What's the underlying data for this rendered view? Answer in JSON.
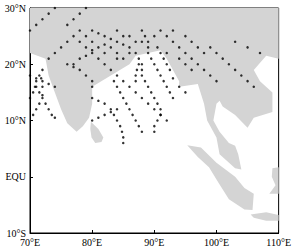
{
  "chart_data": {
    "type": "scatter",
    "marker": "circle",
    "color": "#000000",
    "grid": false,
    "xlim": [
      70,
      110
    ],
    "xticks": [
      {
        "value": 70,
        "label": "70°E"
      },
      {
        "value": 80,
        "label": "80°E"
      },
      {
        "value": 90,
        "label": "90°E"
      },
      {
        "value": 100,
        "label": "100°E"
      },
      {
        "value": 110,
        "label": "110°E"
      }
    ],
    "ylim": [
      -10,
      30
    ],
    "yticks": [
      {
        "value": -10,
        "label": "10°S"
      },
      {
        "value": 0,
        "label": "EQU"
      },
      {
        "value": 10,
        "label": "10°N"
      },
      {
        "value": 20,
        "label": "20°N"
      },
      {
        "value": 30,
        "label": "30°N"
      }
    ],
    "land": {
      "color": "#d4d4d4",
      "polygons": [
        [
          [
            70,
            22
          ],
          [
            72.5,
            21
          ],
          [
            73,
            18
          ],
          [
            74,
            15
          ],
          [
            75,
            12
          ],
          [
            76,
            9.5
          ],
          [
            77.5,
            8
          ],
          [
            78.5,
            9
          ],
          [
            79.5,
            10.5
          ],
          [
            80,
            13
          ],
          [
            80,
            16
          ],
          [
            83,
            18
          ],
          [
            86,
            20
          ],
          [
            87,
            21.5
          ],
          [
            89,
            22
          ],
          [
            91,
            22.5
          ],
          [
            92,
            21
          ],
          [
            94,
            17
          ],
          [
            94,
            16
          ],
          [
            97,
            16.5
          ],
          [
            98,
            13
          ],
          [
            98.5,
            10
          ],
          [
            100,
            7
          ],
          [
            100.5,
            4
          ],
          [
            103,
            1.5
          ],
          [
            104,
            1.3
          ],
          [
            103.5,
            4
          ],
          [
            103,
            5.5
          ],
          [
            102,
            6
          ],
          [
            100.5,
            8
          ],
          [
            99.5,
            10
          ],
          [
            100,
            13
          ],
          [
            100.5,
            13.5
          ],
          [
            101,
            12.5
          ],
          [
            103,
            11
          ],
          [
            105,
            8.7
          ],
          [
            106,
            10.5
          ],
          [
            109,
            11.5
          ],
          [
            109,
            15
          ],
          [
            107,
            17
          ],
          [
            106,
            19
          ],
          [
            108,
            21.5
          ],
          [
            110,
            21
          ],
          [
            110,
            30
          ],
          [
            70,
            30
          ]
        ],
        [
          [
            79.8,
            9.8
          ],
          [
            81,
            8.5
          ],
          [
            81.8,
            7
          ],
          [
            81.5,
            6.2
          ],
          [
            80.5,
            6
          ],
          [
            79.9,
            7
          ],
          [
            79.7,
            8.5
          ]
        ],
        [
          [
            95.3,
            5.6
          ],
          [
            97.5,
            5.2
          ],
          [
            100,
            2.5
          ],
          [
            103,
            0
          ],
          [
            104.5,
            -2
          ],
          [
            106,
            -3
          ],
          [
            105.8,
            -5.9
          ],
          [
            104.5,
            -5.8
          ],
          [
            102,
            -4
          ],
          [
            100.3,
            -1
          ],
          [
            98.8,
            1.7
          ],
          [
            97,
            3.5
          ]
        ],
        [
          [
            108.5,
            -3
          ],
          [
            110,
            -3
          ],
          [
            110,
            1.7
          ],
          [
            109,
            1.5
          ],
          [
            108.9,
            0
          ],
          [
            109.5,
            -1.5
          ]
        ],
        [
          [
            105.5,
            -6.7
          ],
          [
            108,
            -6.3
          ],
          [
            110,
            -6.8
          ],
          [
            110,
            -7.8
          ],
          [
            108,
            -7.8
          ],
          [
            106,
            -7.3
          ]
        ]
      ]
    },
    "points": [
      [
        72,
        19
      ],
      [
        71.5,
        18
      ],
      [
        71,
        17
      ],
      [
        71,
        16
      ],
      [
        71.5,
        15
      ],
      [
        72,
        14
      ],
      [
        72.5,
        13
      ],
      [
        73,
        12
      ],
      [
        73.5,
        11
      ],
      [
        74,
        10.5
      ],
      [
        70.5,
        11
      ],
      [
        71,
        12
      ],
      [
        71.5,
        13
      ],
      [
        72,
        14.5
      ],
      [
        72,
        16
      ],
      [
        71.8,
        17.5
      ],
      [
        74,
        16
      ],
      [
        73,
        16.5
      ],
      [
        72,
        17
      ],
      [
        71,
        17.5
      ],
      [
        70,
        18
      ],
      [
        76,
        27
      ],
      [
        77,
        28
      ],
      [
        78,
        29
      ],
      [
        79,
        30
      ],
      [
        70,
        26
      ],
      [
        71,
        27
      ],
      [
        72,
        28
      ],
      [
        73,
        29
      ],
      [
        74,
        30
      ],
      [
        92,
        10
      ],
      [
        91,
        11
      ],
      [
        90,
        12
      ],
      [
        89,
        13
      ],
      [
        88,
        14
      ],
      [
        87,
        15
      ],
      [
        86,
        16
      ],
      [
        85,
        17
      ],
      [
        84,
        18
      ],
      [
        83,
        19
      ],
      [
        82,
        20
      ],
      [
        81,
        21
      ],
      [
        80,
        22
      ],
      [
        79,
        23
      ],
      [
        78,
        24
      ],
      [
        88,
        8
      ],
      [
        87.5,
        9
      ],
      [
        87,
        10
      ],
      [
        86.5,
        11
      ],
      [
        86,
        12
      ],
      [
        85.5,
        13
      ],
      [
        85,
        14
      ],
      [
        84.5,
        15
      ],
      [
        84,
        16
      ],
      [
        83.5,
        17
      ],
      [
        85,
        6
      ],
      [
        85,
        7
      ],
      [
        84.8,
        8
      ],
      [
        84.5,
        9
      ],
      [
        84,
        10
      ],
      [
        83.5,
        11
      ],
      [
        83,
        12
      ],
      [
        82,
        13
      ],
      [
        81,
        13.5
      ],
      [
        80,
        14
      ],
      [
        93,
        14
      ],
      [
        92.5,
        15
      ],
      [
        92,
        16
      ],
      [
        91.5,
        17
      ],
      [
        91,
        18
      ],
      [
        90.5,
        19
      ],
      [
        90,
        20
      ],
      [
        89.5,
        21
      ],
      [
        89,
        22
      ],
      [
        89,
        23
      ],
      [
        89,
        24
      ],
      [
        88.5,
        25
      ],
      [
        88,
        26
      ],
      [
        87,
        17
      ],
      [
        87,
        18
      ],
      [
        87.2,
        19
      ],
      [
        87.5,
        20
      ],
      [
        87.5,
        21
      ],
      [
        87,
        22
      ],
      [
        86,
        23
      ],
      [
        85,
        23.5
      ],
      [
        84,
        24
      ],
      [
        83,
        24.5
      ],
      [
        82,
        25
      ],
      [
        81,
        25.5
      ],
      [
        80,
        26
      ],
      [
        95,
        15
      ],
      [
        94,
        16
      ],
      [
        93,
        17.5
      ],
      [
        92.5,
        19
      ],
      [
        92,
        20
      ],
      [
        91.5,
        21
      ],
      [
        91,
        22
      ],
      [
        90.5,
        23
      ],
      [
        100,
        17
      ],
      [
        99,
        18
      ],
      [
        98,
        19
      ],
      [
        97,
        20
      ],
      [
        96,
        21
      ],
      [
        95,
        22
      ],
      [
        94,
        23
      ],
      [
        93,
        24
      ],
      [
        92,
        25
      ],
      [
        106,
        16
      ],
      [
        105,
        17
      ],
      [
        104,
        18
      ],
      [
        103,
        19
      ],
      [
        102,
        20
      ],
      [
        101,
        21
      ],
      [
        100,
        22
      ],
      [
        99,
        23
      ],
      [
        80,
        10
      ],
      [
        81,
        10.5
      ],
      [
        82,
        11
      ],
      [
        83,
        11.5
      ],
      [
        84,
        12
      ],
      [
        77,
        20
      ],
      [
        78,
        21
      ],
      [
        79,
        21.5
      ],
      [
        80,
        22.5
      ],
      [
        81,
        23
      ],
      [
        82,
        23.5
      ],
      [
        83,
        23
      ],
      [
        84,
        22
      ],
      [
        85,
        21
      ],
      [
        84,
        26
      ],
      [
        85,
        25
      ],
      [
        86,
        25
      ],
      [
        87,
        24
      ],
      [
        88,
        24
      ],
      [
        90,
        25
      ],
      [
        91,
        26
      ],
      [
        93,
        26
      ],
      [
        95,
        25
      ],
      [
        96,
        24
      ],
      [
        97,
        23
      ],
      [
        98,
        22
      ],
      [
        92,
        22
      ],
      [
        94,
        21
      ],
      [
        95,
        20
      ],
      [
        96,
        19
      ],
      [
        86,
        22
      ],
      [
        84,
        21
      ],
      [
        82,
        22
      ],
      [
        80,
        24
      ],
      [
        79,
        25
      ],
      [
        78,
        26
      ],
      [
        77,
        25
      ],
      [
        76,
        24
      ],
      [
        75,
        23
      ],
      [
        74,
        22
      ],
      [
        73,
        21
      ],
      [
        90,
        8
      ],
      [
        90,
        9
      ],
      [
        90.5,
        10
      ],
      [
        91,
        11
      ],
      [
        91,
        12
      ],
      [
        90.5,
        13
      ],
      [
        90,
        14
      ],
      [
        89.5,
        15
      ],
      [
        89,
        16
      ],
      [
        88.5,
        17
      ],
      [
        88,
        18
      ],
      [
        88,
        19
      ],
      [
        88,
        20
      ],
      [
        80,
        16
      ],
      [
        80,
        17
      ],
      [
        79,
        18
      ],
      [
        78,
        19
      ],
      [
        77,
        19.5
      ],
      [
        76,
        20
      ],
      [
        107,
        22
      ],
      [
        105,
        23
      ],
      [
        103,
        24
      ],
      [
        70,
        14
      ],
      [
        70.5,
        15
      ],
      [
        70.8,
        16
      ]
    ]
  }
}
